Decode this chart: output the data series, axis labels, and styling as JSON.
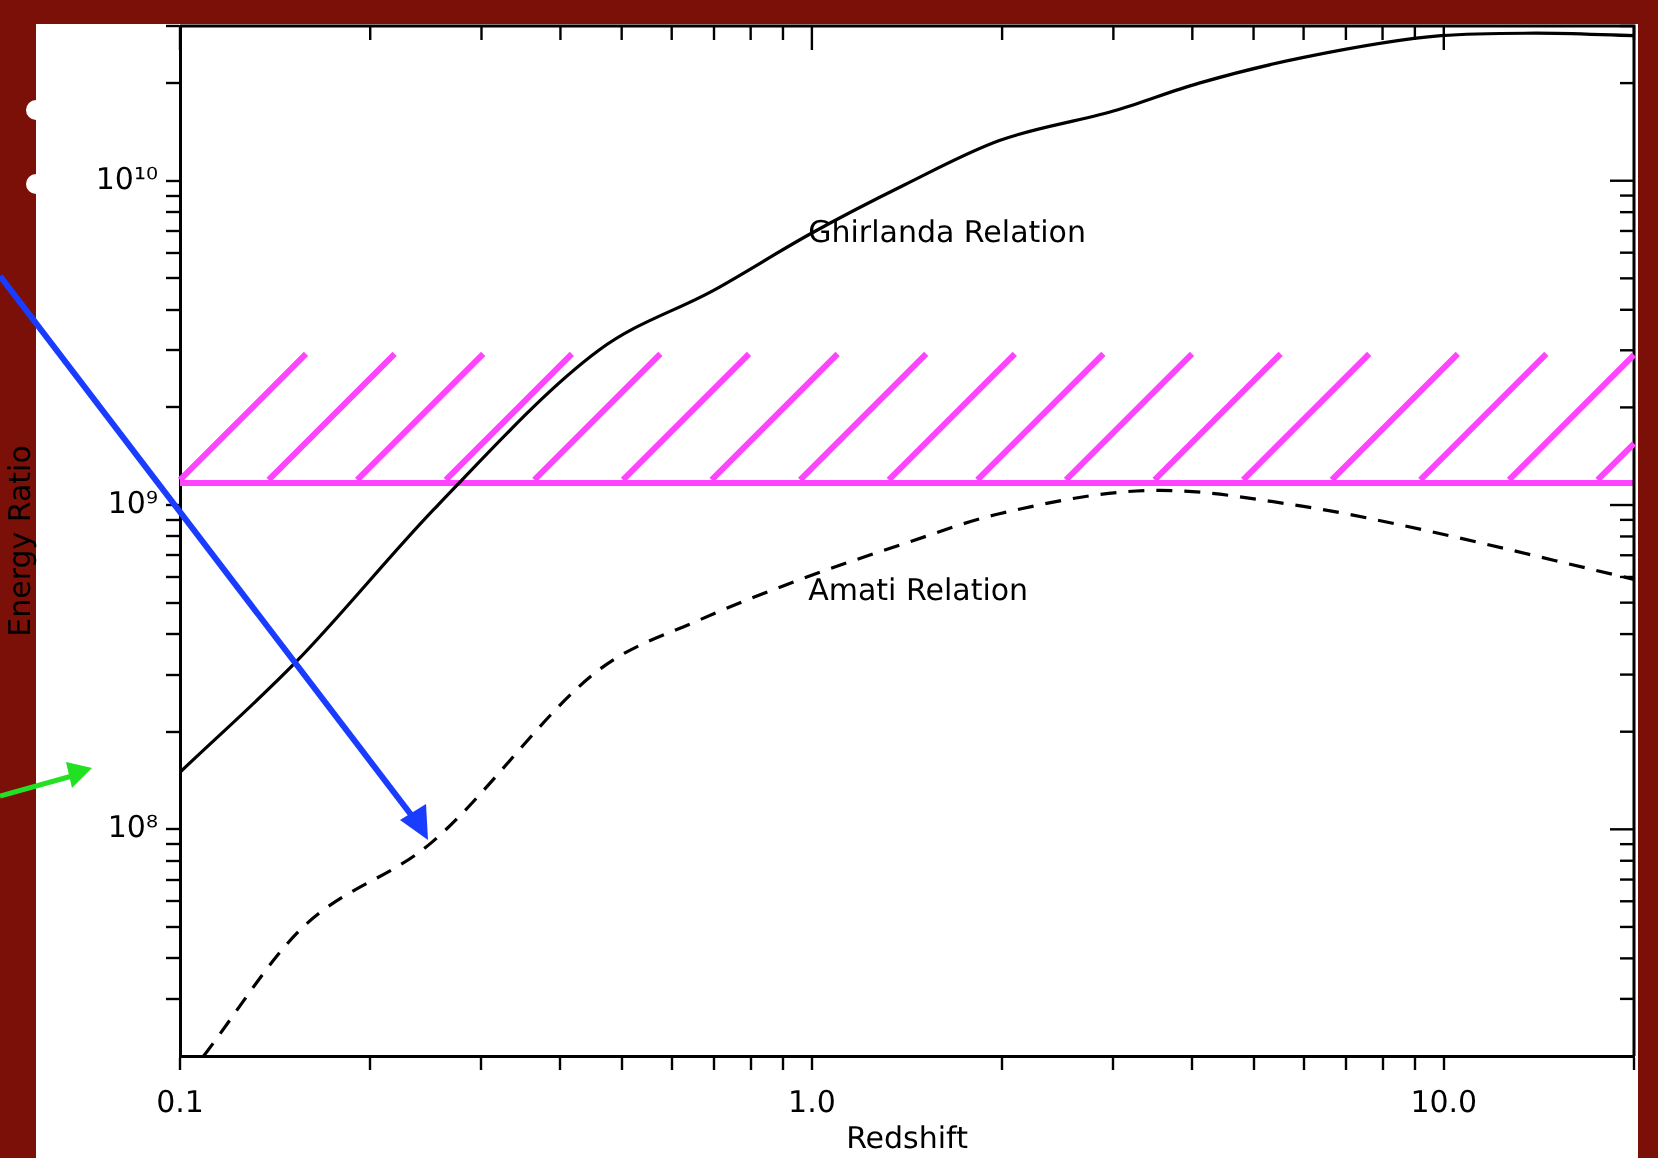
{
  "chart_data": {
    "type": "line",
    "xlabel": "Redshift",
    "ylabel": "Energy Ratio",
    "log": "xy",
    "grid": false,
    "legend": false,
    "marker": "none",
    "xlim": [
      0.1,
      20
    ],
    "ylim": [
      20000000.0,
      30000000000.0
    ],
    "xticks": [
      {
        "value": 0.1,
        "label": "0.1"
      },
      {
        "value": 0.2,
        "label": null
      },
      {
        "value": 0.3,
        "label": null
      },
      {
        "value": 0.4,
        "label": null
      },
      {
        "value": 0.5,
        "label": null
      },
      {
        "value": 0.6,
        "label": null
      },
      {
        "value": 0.7,
        "label": null
      },
      {
        "value": 0.8,
        "label": null
      },
      {
        "value": 0.9,
        "label": null
      },
      {
        "value": 1,
        "label": "1.0"
      },
      {
        "value": 2,
        "label": null
      },
      {
        "value": 3,
        "label": null
      },
      {
        "value": 4,
        "label": null
      },
      {
        "value": 5,
        "label": null
      },
      {
        "value": 6,
        "label": null
      },
      {
        "value": 7,
        "label": null
      },
      {
        "value": 8,
        "label": null
      },
      {
        "value": 9,
        "label": null
      },
      {
        "value": 10,
        "label": "10.0"
      },
      {
        "value": 20,
        "label": null
      }
    ],
    "yticks": [
      {
        "value": 30000000.0,
        "label": null
      },
      {
        "value": 40000000.0,
        "label": null
      },
      {
        "value": 50000000.0,
        "label": null
      },
      {
        "value": 60000000.0,
        "label": null
      },
      {
        "value": 70000000.0,
        "label": null
      },
      {
        "value": 80000000.0,
        "label": null
      },
      {
        "value": 90000000.0,
        "label": null
      },
      {
        "value": 100000000.0,
        "label": "10⁸"
      },
      {
        "value": 200000000.0,
        "label": null
      },
      {
        "value": 300000000.0,
        "label": null
      },
      {
        "value": 400000000.0,
        "label": null
      },
      {
        "value": 500000000.0,
        "label": null
      },
      {
        "value": 600000000.0,
        "label": null
      },
      {
        "value": 700000000.0,
        "label": null
      },
      {
        "value": 800000000.0,
        "label": null
      },
      {
        "value": 900000000.0,
        "label": null
      },
      {
        "value": 1000000000.0,
        "label": "10⁹"
      },
      {
        "value": 2000000000.0,
        "label": null
      },
      {
        "value": 3000000000.0,
        "label": null
      },
      {
        "value": 4000000000.0,
        "label": null
      },
      {
        "value": 5000000000.0,
        "label": null
      },
      {
        "value": 6000000000.0,
        "label": null
      },
      {
        "value": 7000000000.0,
        "label": null
      },
      {
        "value": 8000000000.0,
        "label": null
      },
      {
        "value": 9000000000.0,
        "label": null
      },
      {
        "value": 10000000000.0,
        "label": "10¹⁰"
      },
      {
        "value": 20000000000.0,
        "label": null
      },
      {
        "value": 30000000000.0,
        "label": null
      }
    ],
    "series": [
      {
        "name": "Ghirlanda Relation",
        "color": "#000000",
        "line_style": "solid",
        "x": [
          0.1,
          0.153,
          0.256,
          0.46,
          0.7,
          1,
          1.4,
          1.98,
          3,
          4.1,
          6,
          9.9,
          14,
          20
        ],
        "values": [
          150000000.0,
          330000000.0,
          1000000000.0,
          3000000000.0,
          4600000000.0,
          6900000000.0,
          9700000000.0,
          13300000000.0,
          16400000000.0,
          20000000000.0,
          24000000000.0,
          28000000000.0,
          28500000000.0,
          28000000000.0
        ]
      },
      {
        "name": "Amati Relation",
        "color": "#000000",
        "line_style": "dashed",
        "x": [
          0.109,
          0.155,
          0.25,
          0.46,
          0.66,
          0.96,
          1.4,
          1.98,
          3.55,
          6,
          8.5,
          20
        ],
        "values": [
          20000000.0,
          49000000.0,
          91000000.0,
          310000000.0,
          440000000.0,
          590000000.0,
          760000000.0,
          940000000.0,
          1110000000.0,
          990000000.0,
          870000000.0,
          590000000.0
        ]
      }
    ],
    "ref_lines": [
      {
        "axis": "y",
        "value": 1170000000.0,
        "color": "#ff44ff"
      }
    ]
  }
}
